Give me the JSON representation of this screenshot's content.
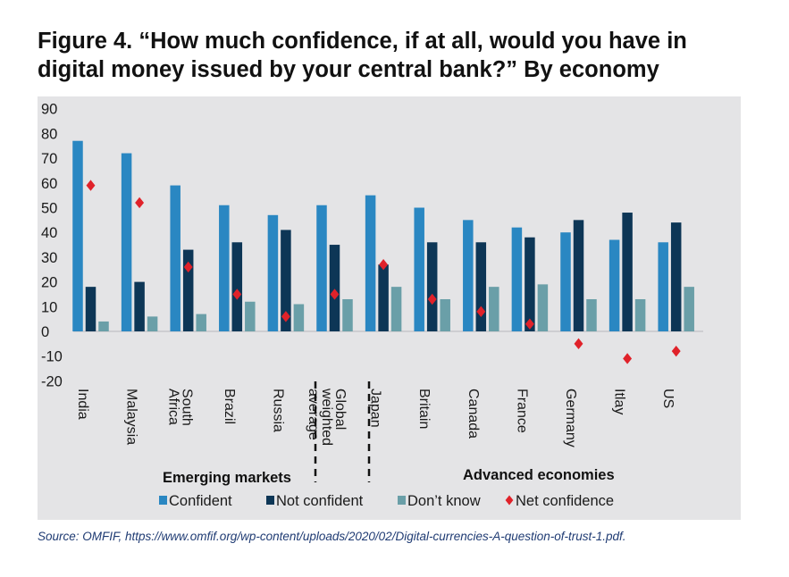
{
  "figure": {
    "title_line1": "Figure 4. “How much confidence, if at all, would you have in",
    "title_line2": "digital money issued by your central bank?” By economy",
    "source": "Source: OMFIF, https://www.omfif.org/wp-content/uploads/2020/02/Digital-currencies-A-question-of-trust-1.pdf."
  },
  "chart_data": {
    "type": "bar",
    "title": "“How much confidence, if at all, would you have in digital money issued by your central bank?” By economy",
    "categories": [
      [
        "India"
      ],
      [
        "Malaysia"
      ],
      [
        "South",
        "Africa"
      ],
      [
        "Brazil"
      ],
      [
        "Russia"
      ],
      [
        "Global",
        "weighted",
        "average"
      ],
      [
        "Japan"
      ],
      [
        "Britain"
      ],
      [
        "Canada"
      ],
      [
        "France"
      ],
      [
        "Germany"
      ],
      [
        "Itlay"
      ],
      [
        "US"
      ]
    ],
    "series": [
      {
        "name": "Confident",
        "color": "#2a87c2",
        "values": [
          77,
          72,
          59,
          51,
          47,
          51,
          55,
          50,
          45,
          42,
          40,
          37,
          36
        ]
      },
      {
        "name": "Not confident",
        "color": "#0d3656",
        "values": [
          18,
          20,
          33,
          36,
          41,
          35,
          27,
          36,
          36,
          38,
          45,
          48,
          44
        ]
      },
      {
        "name": "Don’t know",
        "color": "#6a9fa8",
        "values": [
          4,
          6,
          7,
          12,
          11,
          13,
          18,
          13,
          18,
          19,
          13,
          13,
          18
        ]
      }
    ],
    "markers": {
      "name": "Net confidence",
      "color": "#e0222a",
      "values": [
        59,
        52,
        26,
        15,
        6,
        15,
        27,
        13,
        8,
        3,
        -5,
        -11,
        -8
      ]
    },
    "yticks": [
      90,
      80,
      70,
      60,
      50,
      40,
      30,
      20,
      10,
      0,
      -10,
      -20
    ],
    "ylim": [
      -20,
      90
    ],
    "groups": [
      {
        "label": "Emerging markets"
      },
      {
        "label": "Advanced economies"
      }
    ],
    "legend_position": "bottom",
    "background": "#e4e4e6"
  }
}
